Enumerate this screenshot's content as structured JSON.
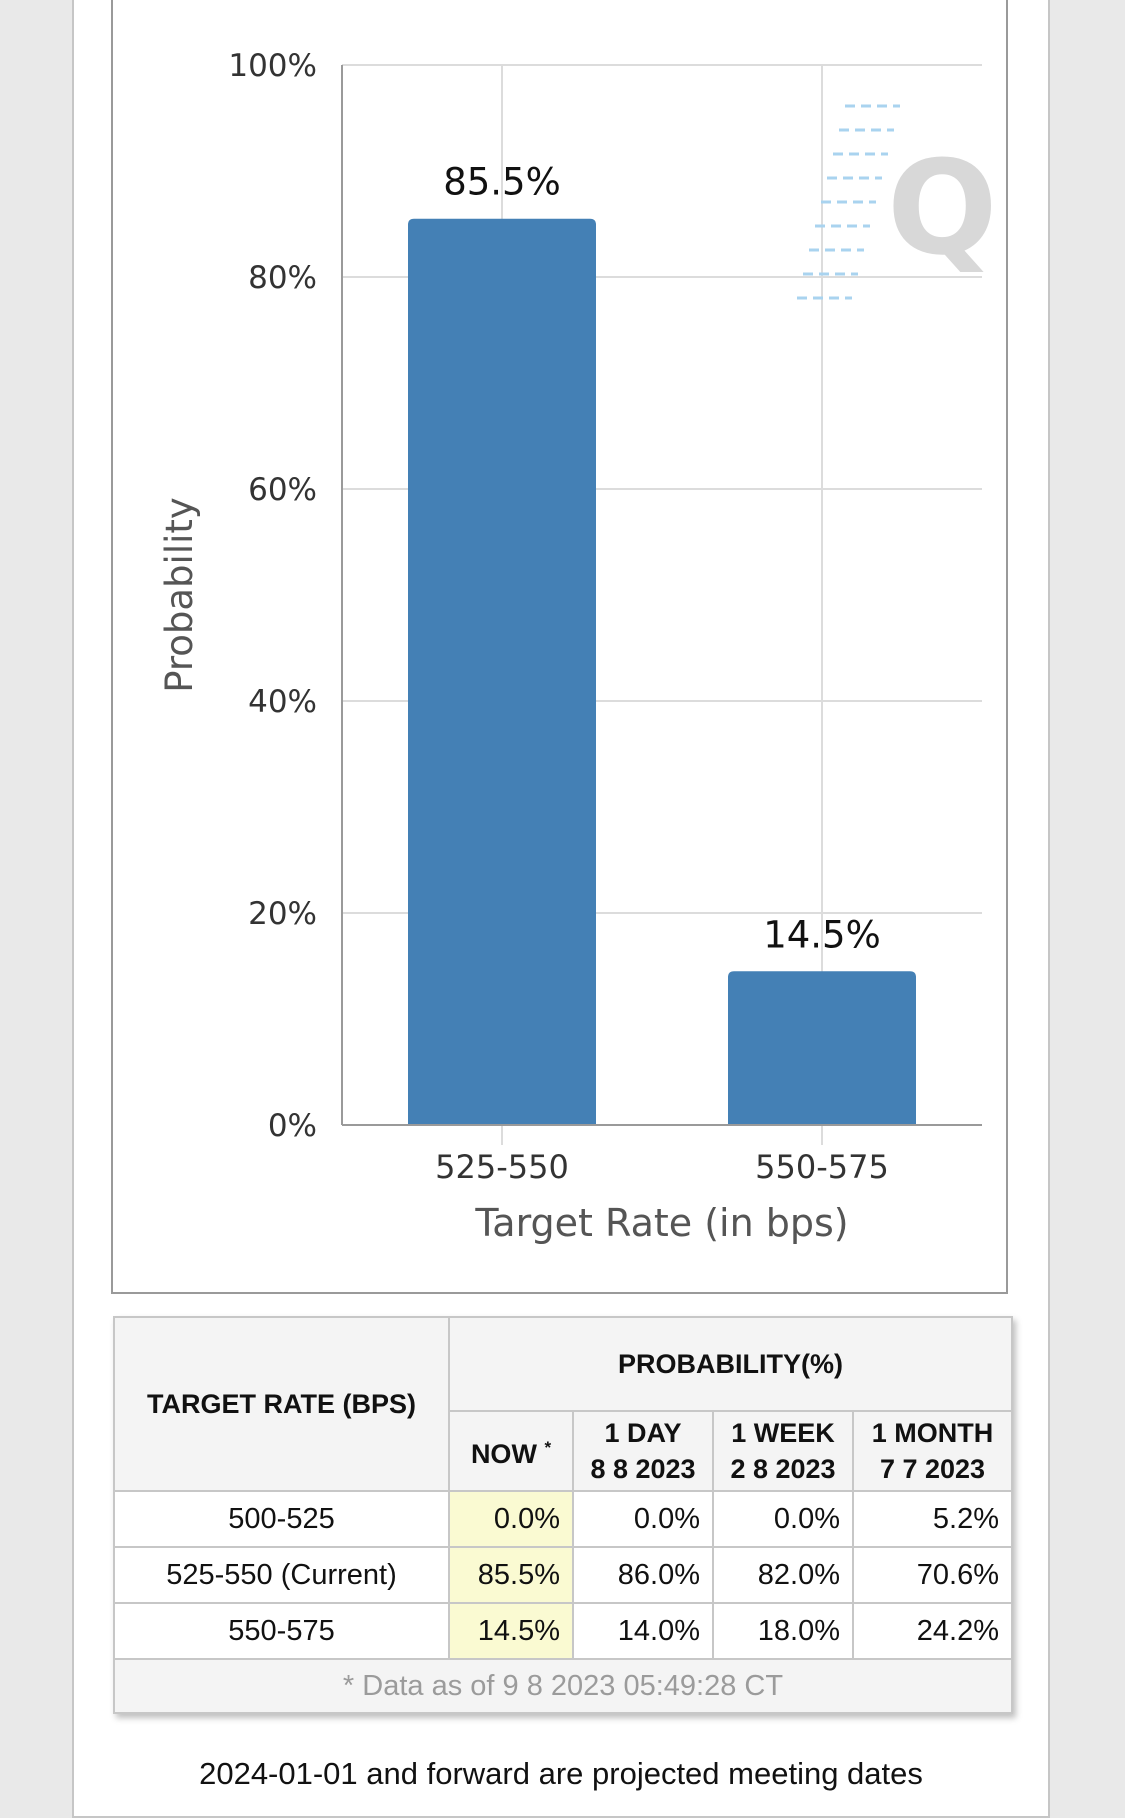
{
  "chart_data": {
    "type": "bar",
    "categories": [
      "525-550",
      "550-575"
    ],
    "values": [
      85.5,
      14.5
    ],
    "value_labels": [
      "85.5%",
      "14.5%"
    ],
    "xlabel": "Target Rate (in bps)",
    "ylabel": "Probability",
    "ylim": [
      0,
      100
    ],
    "yticks": [
      0,
      20,
      40,
      60,
      80,
      100
    ],
    "ytick_labels": [
      "0%",
      "20%",
      "40%",
      "60%",
      "80%",
      "100%"
    ],
    "grid": true,
    "bar_color": "#4480b5",
    "watermark": "Q"
  },
  "table": {
    "target_rate_header": "TARGET RATE (BPS)",
    "probability_header": "PROBABILITY(%)",
    "columns": [
      {
        "line1": "NOW",
        "line2": "",
        "note": "*"
      },
      {
        "line1": "1 DAY",
        "line2": "8 8 2023"
      },
      {
        "line1": "1 WEEK",
        "line2": "2 8 2023"
      },
      {
        "line1": "1 MONTH",
        "line2": "7 7 2023"
      }
    ],
    "rows": [
      {
        "rate": "500-525",
        "now": "0.0%",
        "day": "0.0%",
        "week": "0.0%",
        "month": "5.2%"
      },
      {
        "rate": "525-550 (Current)",
        "now": "85.5%",
        "day": "86.0%",
        "week": "82.0%",
        "month": "70.6%"
      },
      {
        "rate": "550-575",
        "now": "14.5%",
        "day": "14.0%",
        "week": "18.0%",
        "month": "24.2%"
      }
    ],
    "footnote": "* Data as of 9 8 2023 05:49:28 CT"
  },
  "bottom_note": "2024-01-01 and forward are projected meeting dates",
  "colors": {
    "now_highlight": "#fafad2",
    "grid": "#dcdcdc",
    "axis": "#9a9a9a"
  }
}
